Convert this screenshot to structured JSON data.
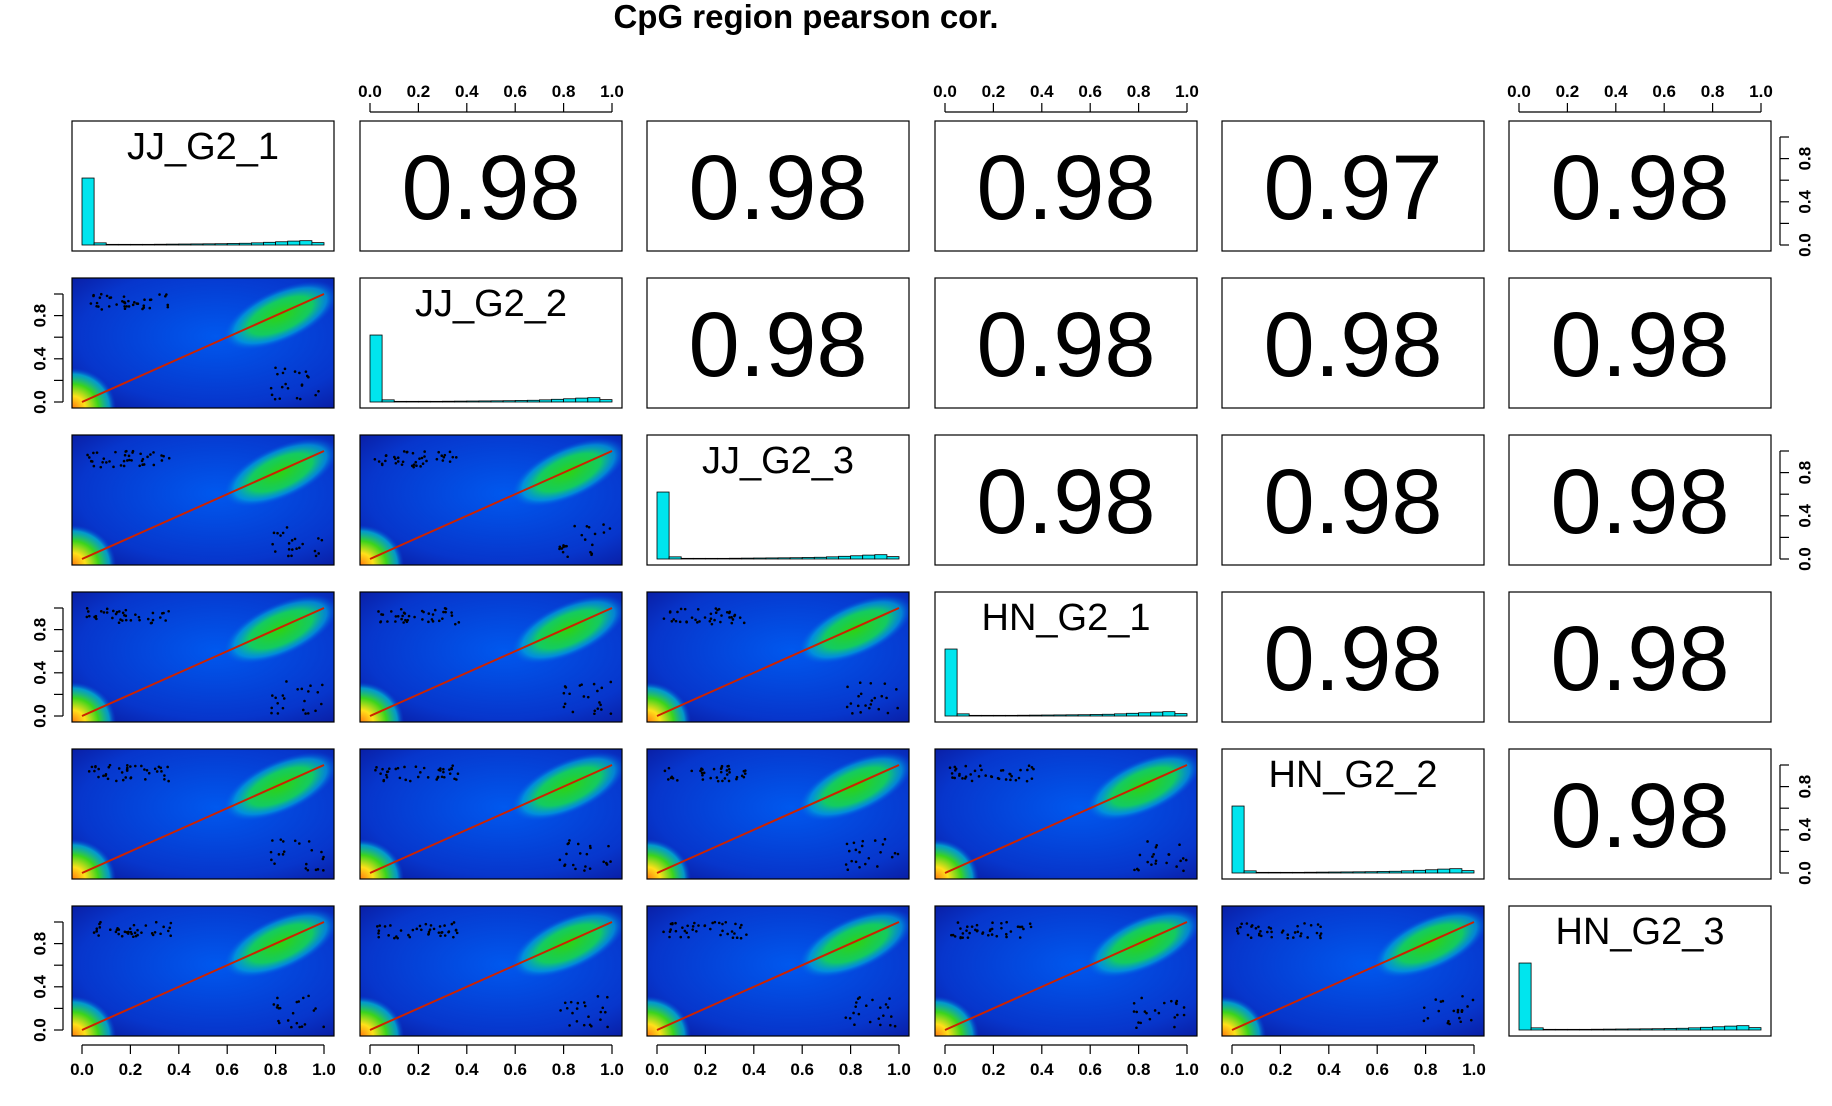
{
  "chart_data": {
    "type": "scatter-matrix",
    "title": "CpG region pearson cor.",
    "variables": [
      "JJ_G2_1",
      "JJ_G2_2",
      "JJ_G2_3",
      "HN_G2_1",
      "HN_G2_2",
      "HN_G2_3"
    ],
    "axis_range": [
      0,
      1
    ],
    "axis_ticks": [
      "0.0",
      "0.2",
      "0.4",
      "0.6",
      "0.8",
      "1.0"
    ],
    "diag_axis_ticks": [
      "0.0",
      "0.4",
      "0.8"
    ],
    "correlations": [
      [
        null,
        0.98,
        0.98,
        0.98,
        0.97,
        0.98
      ],
      [
        0.98,
        null,
        0.98,
        0.98,
        0.98,
        0.98
      ],
      [
        0.98,
        0.98,
        null,
        0.98,
        0.98,
        0.98
      ],
      [
        0.98,
        0.98,
        0.98,
        null,
        0.98,
        0.98
      ],
      [
        0.97,
        0.98,
        0.98,
        0.98,
        null,
        0.98
      ],
      [
        0.98,
        0.98,
        0.98,
        0.98,
        0.98,
        null
      ]
    ],
    "correlation_labels": [
      [
        null,
        "0.98",
        "0.98",
        "0.98",
        "0.97",
        "0.98"
      ],
      [
        null,
        null,
        "0.98",
        "0.98",
        "0.98",
        "0.98"
      ],
      [
        null,
        null,
        null,
        "0.98",
        "0.98",
        "0.98"
      ],
      [
        null,
        null,
        null,
        null,
        "0.98",
        "0.98"
      ],
      [
        null,
        null,
        null,
        null,
        null,
        "0.98"
      ],
      [
        null,
        null,
        null,
        null,
        null,
        null
      ]
    ],
    "histogram": {
      "bin_width": 0.05,
      "values": [
        0.62,
        0.02,
        0.006,
        0.006,
        0.006,
        0.006,
        0.007,
        0.008,
        0.009,
        0.01,
        0.011,
        0.012,
        0.014,
        0.016,
        0.02,
        0.025,
        0.03,
        0.036,
        0.04,
        0.022
      ]
    },
    "fit_line": {
      "intercept": 0,
      "slope": 1,
      "color": "#cc2200"
    },
    "density_colors": [
      "#0a1a9e",
      "#0050e6",
      "#00d2c8",
      "#22d11a",
      "#e8e81a",
      "#ff9a1a"
    ],
    "histogram_color": "#00e5ee",
    "grid": false
  }
}
